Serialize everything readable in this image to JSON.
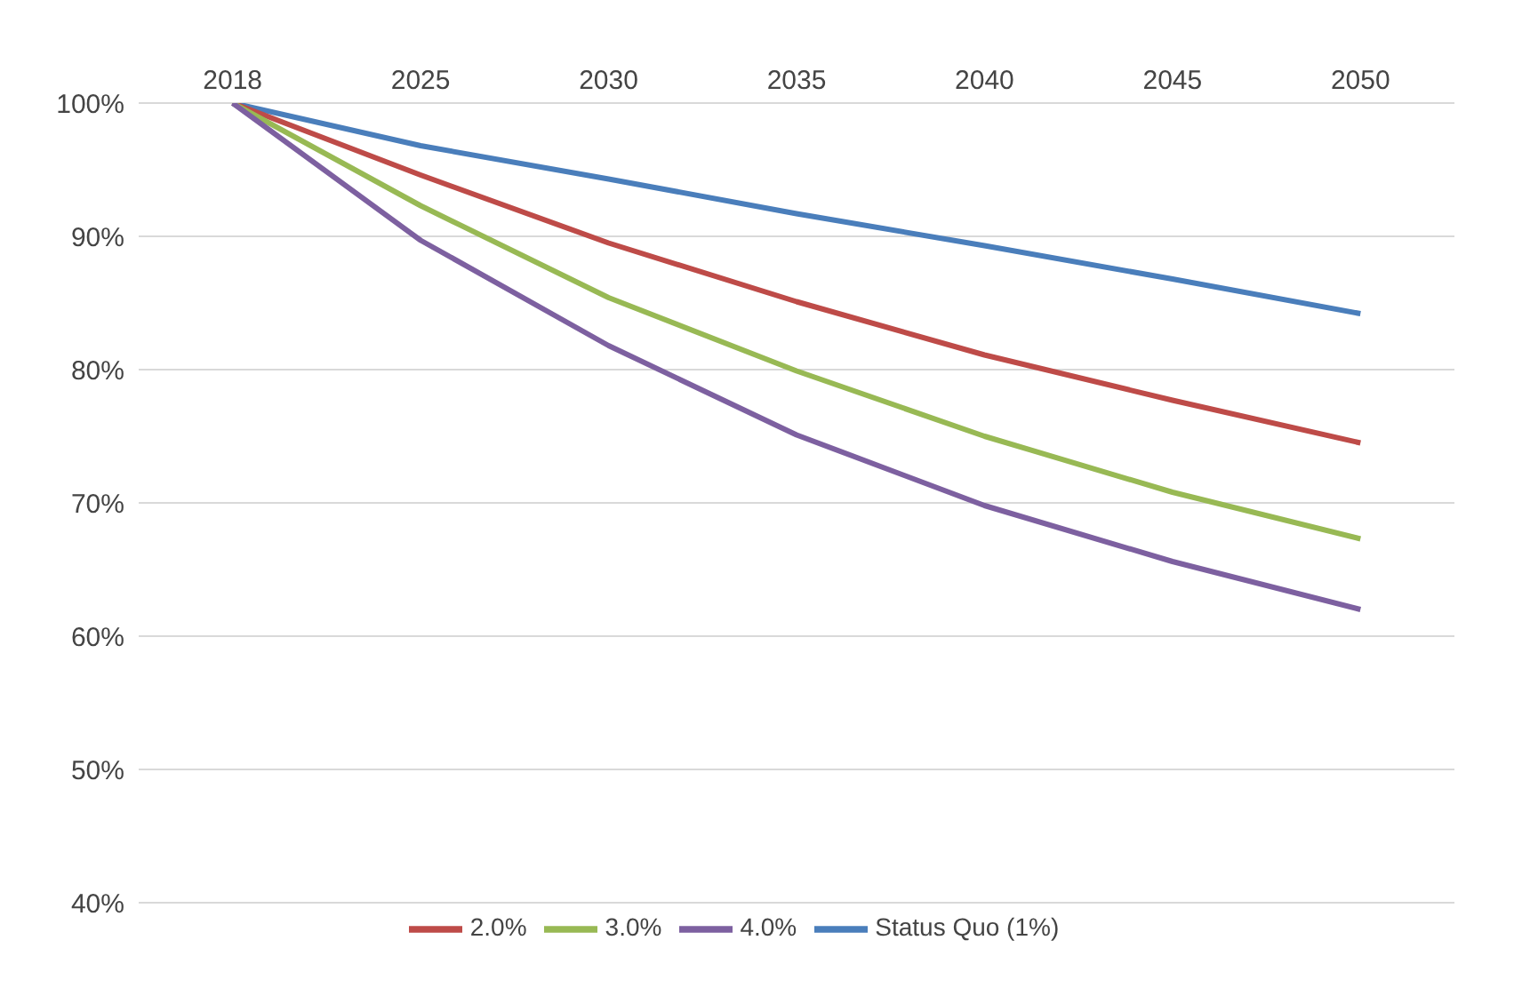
{
  "chart_data": {
    "type": "line",
    "categories": [
      "2018",
      "2025",
      "2030",
      "2035",
      "2040",
      "2045",
      "2050"
    ],
    "series": [
      {
        "name": "Status Quo (1%)",
        "color": "#4a7ebb",
        "values": [
          100,
          96.8,
          94.3,
          91.7,
          89.3,
          86.8,
          84.2
        ]
      },
      {
        "name": "2.0%",
        "color": "#be4b48",
        "values": [
          100,
          94.6,
          89.5,
          85.1,
          81.1,
          77.7,
          74.5
        ]
      },
      {
        "name": "3.0%",
        "color": "#98b954",
        "values": [
          100,
          92.3,
          85.4,
          79.9,
          75.0,
          70.8,
          67.3
        ]
      },
      {
        "name": "4.0%",
        "color": "#7d60a0",
        "values": [
          100,
          89.7,
          81.8,
          75.1,
          69.8,
          65.6,
          62.0
        ]
      }
    ],
    "ylim": [
      40,
      100
    ],
    "yticks": [
      {
        "value": 40,
        "label": "40%"
      },
      {
        "value": 50,
        "label": "50%"
      },
      {
        "value": 60,
        "label": "60%"
      },
      {
        "value": 70,
        "label": "70%"
      },
      {
        "value": 80,
        "label": "80%"
      },
      {
        "value": 90,
        "label": "90%"
      },
      {
        "value": 100,
        "label": "100%"
      }
    ],
    "grid": "y",
    "legend": "bottom",
    "marker": "none",
    "line_style": "solid"
  }
}
